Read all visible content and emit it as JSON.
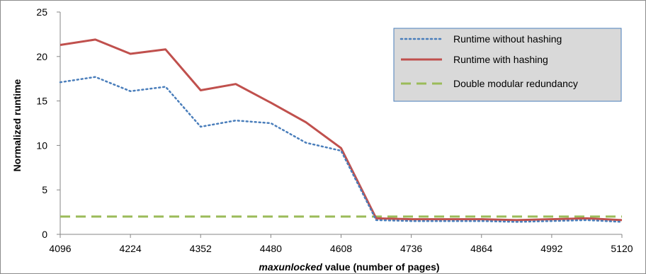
{
  "chart_data": {
    "type": "line",
    "xlabel_italic": "maxunlocked",
    "xlabel_rest": " value (number of pages)",
    "ylabel": "Normalized runtime",
    "x": [
      4096,
      4160,
      4224,
      4288,
      4352,
      4416,
      4480,
      4544,
      4608,
      4672,
      4736,
      4800,
      4864,
      4928,
      4992,
      5056,
      5120
    ],
    "x_ticks": [
      4096,
      4224,
      4352,
      4480,
      4608,
      4736,
      4864,
      4992,
      5120
    ],
    "xlim": [
      4096,
      5120
    ],
    "y_ticks": [
      0,
      5,
      10,
      15,
      20,
      25
    ],
    "ylim": [
      0,
      25
    ],
    "legend_position": "top-right",
    "grid": false,
    "series": [
      {
        "name": "Runtime without hashing",
        "style": "dotted",
        "color": "#4a7ebb",
        "values": [
          17.1,
          17.7,
          16.1,
          16.6,
          12.1,
          12.8,
          12.5,
          10.3,
          9.4,
          1.6,
          1.5,
          1.5,
          1.5,
          1.4,
          1.5,
          1.6,
          1.4
        ]
      },
      {
        "name": "Runtime with hashing",
        "style": "solid",
        "color": "#c0504d",
        "values": [
          21.3,
          21.9,
          20.3,
          20.8,
          16.2,
          16.9,
          14.8,
          12.6,
          9.7,
          1.8,
          1.7,
          1.7,
          1.7,
          1.6,
          1.7,
          1.8,
          1.6
        ]
      },
      {
        "name": "Double modular redundancy",
        "style": "dashed",
        "color": "#9bbb59",
        "values": [
          2,
          2,
          2,
          2,
          2,
          2,
          2,
          2,
          2,
          2,
          2,
          2,
          2,
          2,
          2,
          2,
          2
        ]
      }
    ]
  }
}
